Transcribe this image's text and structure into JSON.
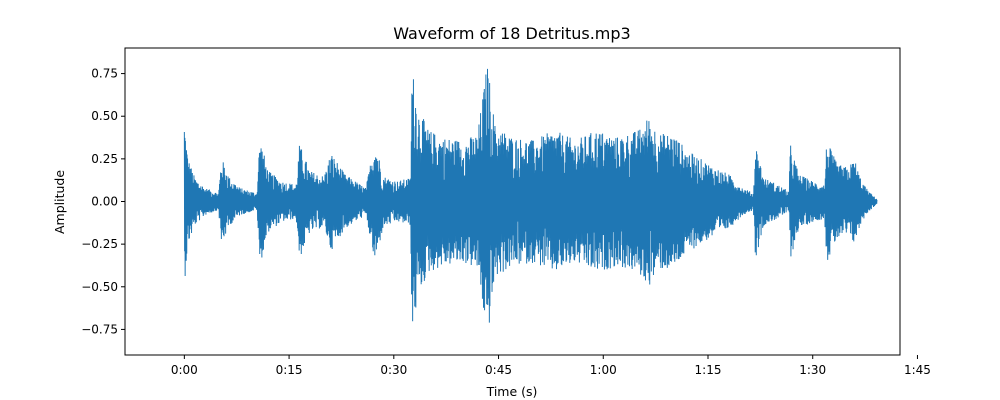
{
  "chart_data": {
    "type": "area",
    "title": "Waveform of 18 Detritus.mp3",
    "xlabel": "Time (s)",
    "ylabel": "Amplitude",
    "xlim": [
      -8.5,
      102.5
    ],
    "ylim": [
      -0.9,
      0.9
    ],
    "x_ticks": [
      {
        "value": 0,
        "label": "0:00"
      },
      {
        "value": 15,
        "label": "0:15"
      },
      {
        "value": 30,
        "label": "0:30"
      },
      {
        "value": 45,
        "label": "0:45"
      },
      {
        "value": 60,
        "label": "1:00"
      },
      {
        "value": 75,
        "label": "1:15"
      },
      {
        "value": 90,
        "label": "1:30"
      },
      {
        "value": 105,
        "label": "1:45"
      }
    ],
    "y_ticks": [
      {
        "value": 0.75,
        "label": "0.75"
      },
      {
        "value": 0.5,
        "label": "0.50"
      },
      {
        "value": 0.25,
        "label": "0.25"
      },
      {
        "value": 0.0,
        "label": "0.00"
      },
      {
        "value": -0.25,
        "label": "−0.25"
      },
      {
        "value": -0.5,
        "label": "−0.50"
      },
      {
        "value": -0.75,
        "label": "−0.75"
      }
    ],
    "grid": false,
    "series": [
      {
        "color": "#1f77b4",
        "duration": 99.2,
        "envelope": [
          [
            0.0,
            0.49
          ],
          [
            0.5,
            0.26
          ],
          [
            1.5,
            0.14
          ],
          [
            3.0,
            0.08
          ],
          [
            4.9,
            0.05
          ],
          [
            5.3,
            0.26
          ],
          [
            6.5,
            0.14
          ],
          [
            8.0,
            0.08
          ],
          [
            10.4,
            0.05
          ],
          [
            10.8,
            0.38
          ],
          [
            12.0,
            0.18
          ],
          [
            14.0,
            0.12
          ],
          [
            16.0,
            0.1
          ],
          [
            16.5,
            0.34
          ],
          [
            18.0,
            0.18
          ],
          [
            20.0,
            0.15
          ],
          [
            21.0,
            0.29
          ],
          [
            23.0,
            0.16
          ],
          [
            26.0,
            0.08
          ],
          [
            27.3,
            0.37
          ],
          [
            28.5,
            0.15
          ],
          [
            30.5,
            0.12
          ],
          [
            32.4,
            0.14
          ],
          [
            32.6,
            0.8
          ],
          [
            33.5,
            0.55
          ],
          [
            35.0,
            0.42
          ],
          [
            37.0,
            0.38
          ],
          [
            40.0,
            0.36
          ],
          [
            42.0,
            0.4
          ],
          [
            43.4,
            0.82
          ],
          [
            44.5,
            0.45
          ],
          [
            47.0,
            0.38
          ],
          [
            50.0,
            0.36
          ],
          [
            53.0,
            0.42
          ],
          [
            56.0,
            0.36
          ],
          [
            59.0,
            0.42
          ],
          [
            62.0,
            0.38
          ],
          [
            65.0,
            0.42
          ],
          [
            66.5,
            0.5
          ],
          [
            68.0,
            0.4
          ],
          [
            70.0,
            0.4
          ],
          [
            72.0,
            0.3
          ],
          [
            74.0,
            0.25
          ],
          [
            76.0,
            0.2
          ],
          [
            78.0,
            0.16
          ],
          [
            80.0,
            0.08
          ],
          [
            81.5,
            0.05
          ],
          [
            81.8,
            0.34
          ],
          [
            83.0,
            0.14
          ],
          [
            85.0,
            0.1
          ],
          [
            86.6,
            0.06
          ],
          [
            86.8,
            0.34
          ],
          [
            88.0,
            0.16
          ],
          [
            90.0,
            0.12
          ],
          [
            91.7,
            0.1
          ],
          [
            92.0,
            0.36
          ],
          [
            93.5,
            0.22
          ],
          [
            95.0,
            0.2
          ],
          [
            96.0,
            0.25
          ],
          [
            97.0,
            0.12
          ],
          [
            98.0,
            0.06
          ],
          [
            99.2,
            0.015
          ]
        ]
      }
    ]
  }
}
